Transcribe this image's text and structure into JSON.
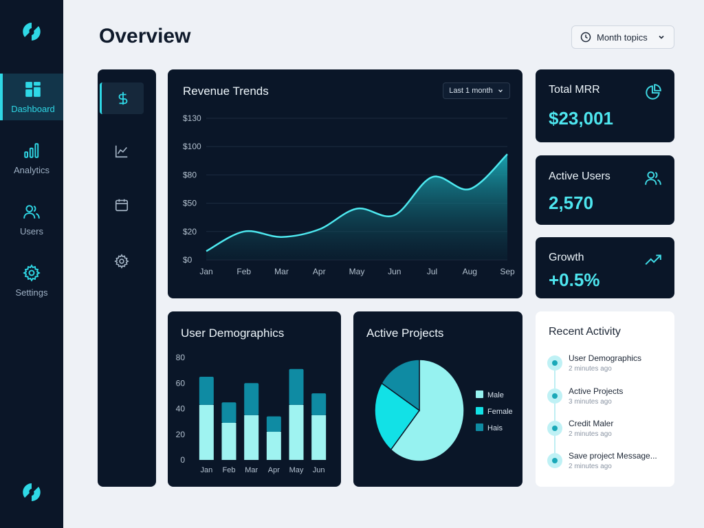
{
  "nav": {
    "items": [
      {
        "label": "Dashboard",
        "icon": "dashboard-icon"
      },
      {
        "label": "Analytics",
        "icon": "bar-chart-icon"
      },
      {
        "label": "Users",
        "icon": "users-icon"
      },
      {
        "label": "Settings",
        "icon": "gear-icon"
      }
    ]
  },
  "header": {
    "title": "Overview",
    "topic_button": "Month topics"
  },
  "toolbar": {
    "icons": [
      "dollar-icon",
      "line-chart-icon",
      "calendar-icon",
      "gear-icon"
    ]
  },
  "revenue": {
    "title": "Revenue Trends",
    "range_label": "Last 1 month",
    "chart_data": {
      "type": "area",
      "title": "Revenue Trends",
      "categories": [
        "Jan",
        "Feb",
        "Mar",
        "Apr",
        "May",
        "Jun",
        "Jul",
        "Aug",
        "Sep"
      ],
      "y_tick_labels": [
        "$0",
        "$20",
        "$50",
        "$80",
        "$100",
        "$130"
      ],
      "values": [
        8,
        26,
        21,
        28,
        47,
        41,
        76,
        65,
        97
      ],
      "ylim": [
        0,
        130
      ],
      "grid": true
    }
  },
  "stats": {
    "mrr": {
      "label": "Total MRR",
      "value": "$23,001",
      "icon": "pie-chart-icon"
    },
    "users": {
      "label": "Active Users",
      "value": "2,570",
      "icon": "users-icon"
    },
    "growth": {
      "label": "Growth",
      "value": "+0.5%",
      "icon": "trend-up-icon"
    }
  },
  "demographics": {
    "title": "User Demographics",
    "chart_data": {
      "type": "bar",
      "title": "User Demographics",
      "categories": [
        "Jan",
        "Feb",
        "Mar",
        "Apr",
        "May",
        "Jun"
      ],
      "series": [
        {
          "values": [
            43,
            29,
            35,
            22,
            43,
            35
          ]
        },
        {
          "values": [
            22,
            16,
            25,
            12,
            28,
            17
          ]
        }
      ],
      "y_ticks": [
        0,
        20,
        40,
        60,
        80
      ],
      "ylim": [
        0,
        80
      ],
      "stacked": true,
      "colors": [
        "#9ff3f1",
        "#0f8ba3"
      ]
    }
  },
  "projects": {
    "title": "Active Projects",
    "chart_data": {
      "type": "pie",
      "title": "Active Projects",
      "slices": [
        {
          "label": "Male",
          "value": 61,
          "color": "#96f2f0"
        },
        {
          "label": "Female",
          "value": 23,
          "color": "#12e1e6"
        },
        {
          "label": "Hais",
          "value": 16,
          "color": "#0f8ba3"
        }
      ],
      "legend": "right"
    }
  },
  "recent": {
    "title": "Recent Activity",
    "items": [
      {
        "text": "User Demographics",
        "time": "2 minutes ago"
      },
      {
        "text": "Active Projects",
        "time": "3 minutes ago"
      },
      {
        "text": "Credit Maler",
        "time": "2 minutes ago"
      },
      {
        "text": "Save project Message...",
        "time": "2 minutes ago"
      }
    ]
  },
  "colors": {
    "accent": "#2fd8e6",
    "nav_bg": "#0b1628",
    "card_bg": "#0a1628",
    "page_bg": "#eef1f6"
  }
}
